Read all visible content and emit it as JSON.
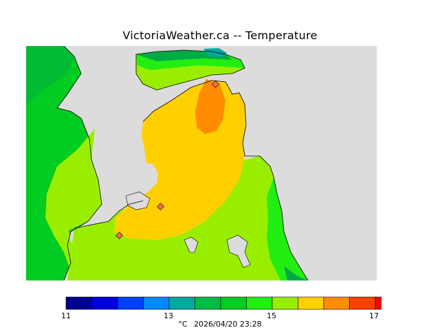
{
  "title": "VictoriaWeather.ca -- Temperature",
  "legend": {
    "min_label": "11",
    "mid1_label": "13",
    "mid2_label": "15",
    "max_label": "17",
    "colors": [
      "#000090",
      "#0000d8",
      "#0040ff",
      "#0088ff",
      "#00a8a0",
      "#00bb44",
      "#00cc22",
      "#22ee11",
      "#99ee00",
      "#ffd000",
      "#ff8c00",
      "#ff4000",
      "#ff0000"
    ]
  },
  "footer": {
    "unit": "°C",
    "timestamp": "2026/04/20 23:28"
  },
  "map_colors": {
    "land_none": "#dcdcdc",
    "green_dark": "#00aa44",
    "green": "#00cc22",
    "green_light": "#22ee11",
    "yellow_green": "#99ee00",
    "yellow": "#ffd000",
    "orange": "#ff8c00",
    "teal": "#00a8a0",
    "station": "#ff6a50"
  }
}
